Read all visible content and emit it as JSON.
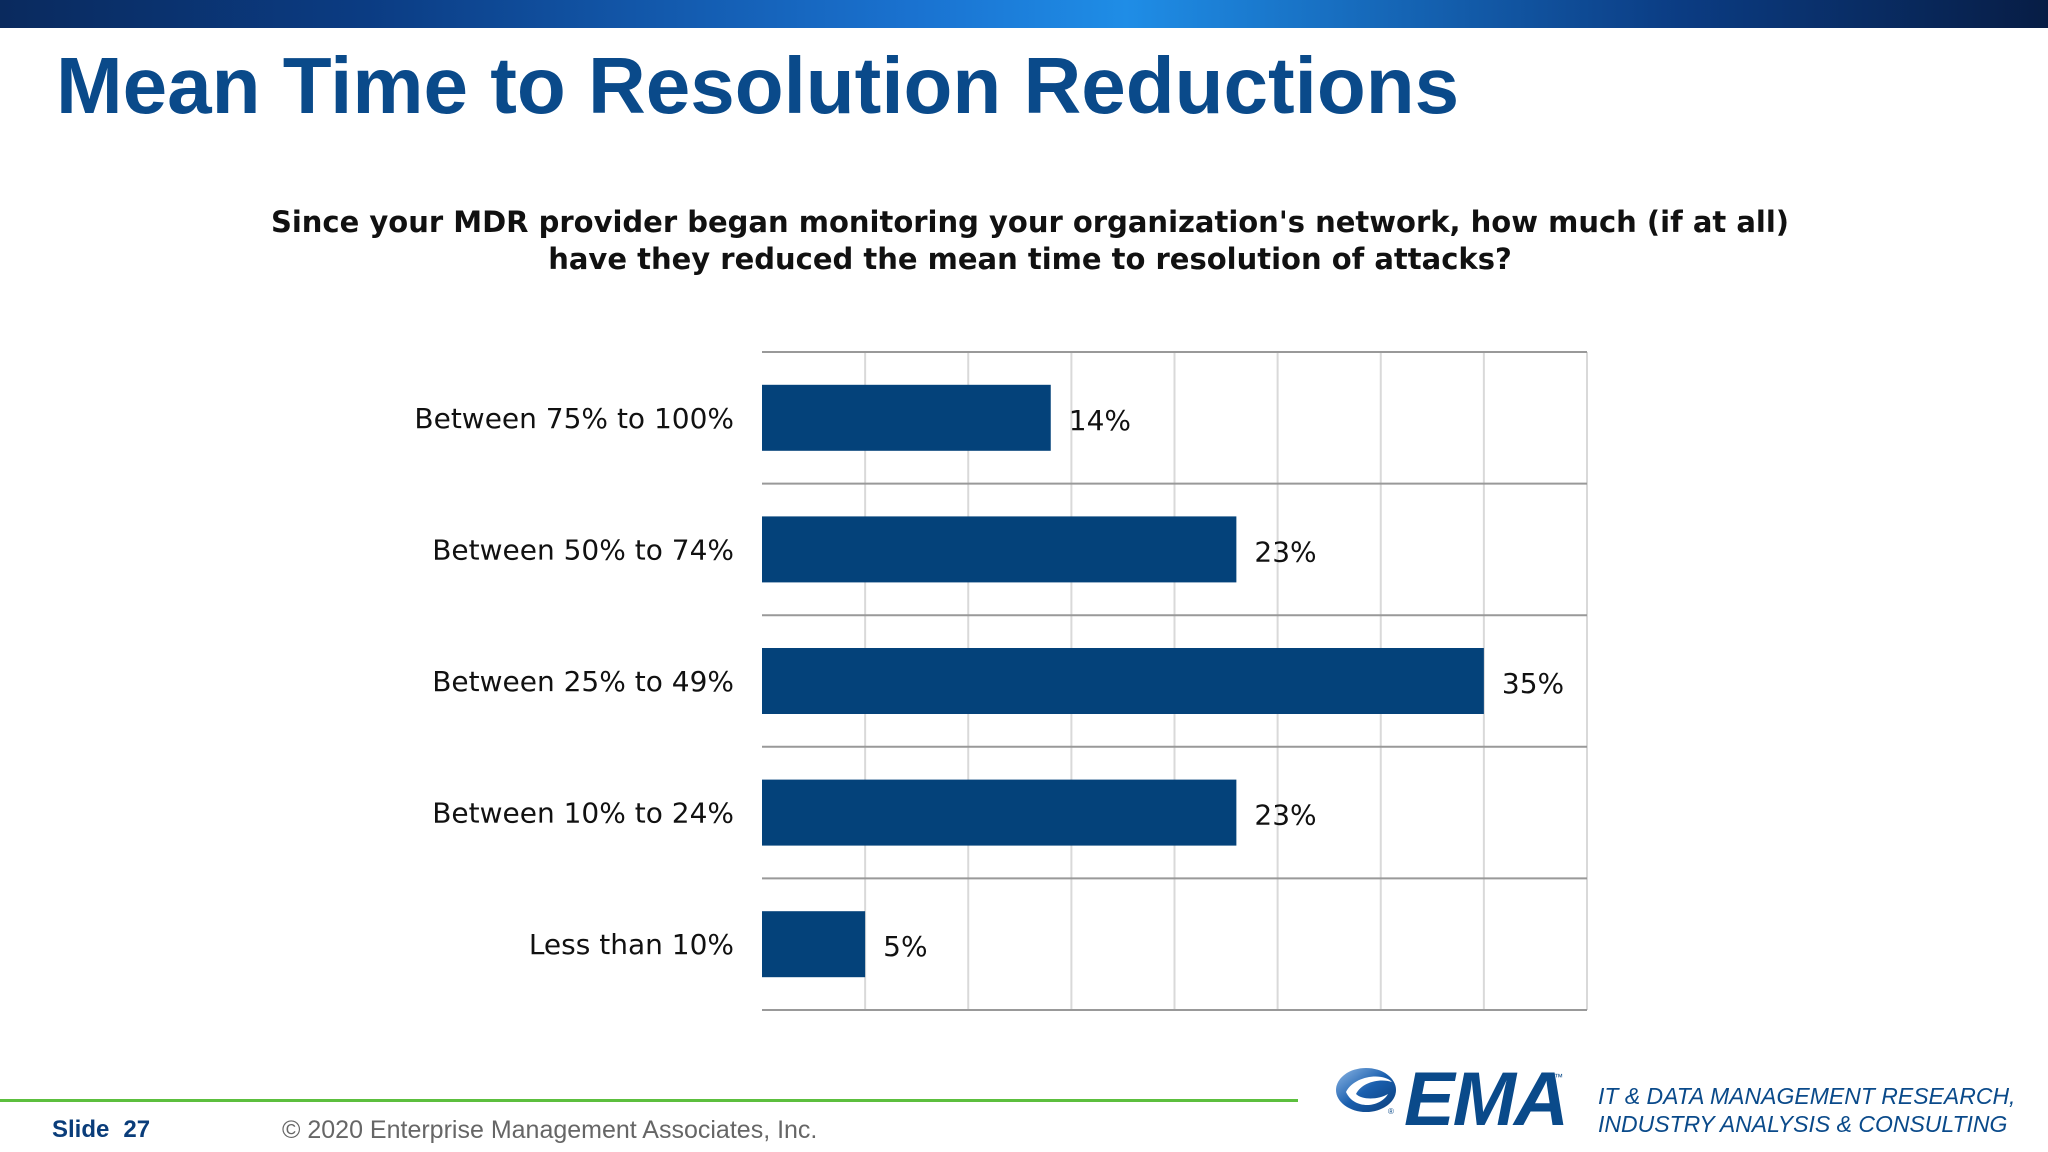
{
  "slide": {
    "title": "Mean Time to Resolution Reductions",
    "question": "Since your MDR provider began monitoring your organization's network, how much (if at all) have they reduced the mean time to resolution of attacks?",
    "slide_label": "Slide",
    "slide_number": "27",
    "copyright": "© 2020  Enterprise Management Associates, Inc.",
    "logo_text": "EMA",
    "logo_tm": "™",
    "tagline_line1": "IT & DATA MANAGEMENT RESEARCH,",
    "tagline_line2": "INDUSTRY ANALYSIS & CONSULTING",
    "colors": {
      "bar": "#04427a",
      "title": "#0a4a8a",
      "accent_line": "#5cbf3e"
    }
  },
  "chart_data": {
    "type": "bar",
    "orientation": "horizontal",
    "categories": [
      "Between 75% to 100%",
      "Between 50% to 74%",
      "Between 25% to 49%",
      "Between 10% to 24%",
      "Less than 10%"
    ],
    "values": [
      14,
      23,
      35,
      23,
      5
    ],
    "value_labels": [
      "14%",
      "23%",
      "35%",
      "23%",
      "5%"
    ],
    "xlim": [
      0,
      40
    ],
    "grid": true,
    "title": "",
    "xlabel": "",
    "ylabel": ""
  }
}
